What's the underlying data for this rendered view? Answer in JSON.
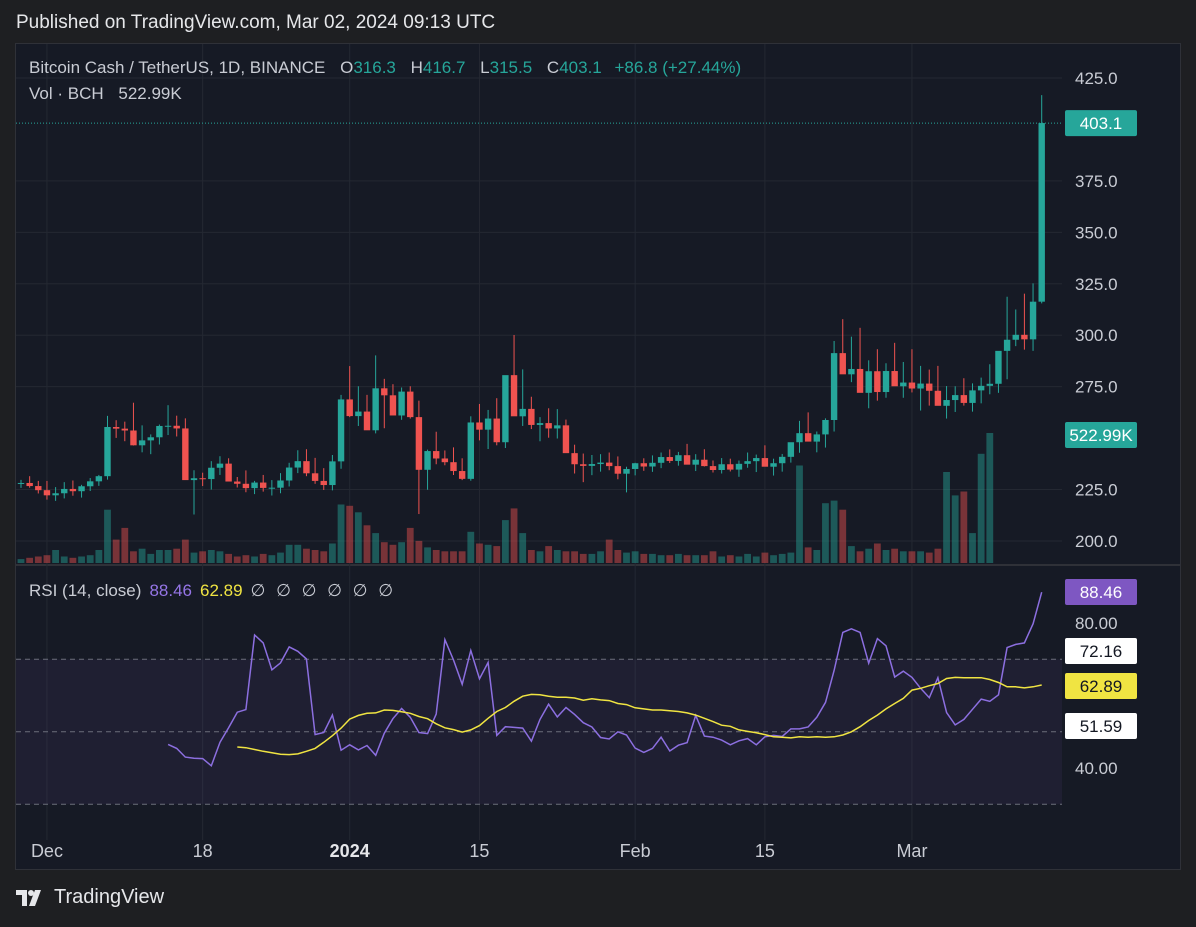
{
  "published": "Published on TradingView.com, Mar 02, 2024 09:13 UTC",
  "legend": {
    "symbol": "Bitcoin Cash / TetherUS, 1D, BINANCE",
    "o_label": "O",
    "o": "316.3",
    "h_label": "H",
    "h": "416.7",
    "l_label": "L",
    "l": "315.5",
    "c_label": "C",
    "c": "403.1",
    "change": "+86.8 (+27.44%)",
    "vol_label": "Vol · BCH",
    "vol_value": "522.99K"
  },
  "rsi_legend": {
    "label": "RSI (14, close)",
    "rsi": "88.46",
    "ma": "62.89",
    "na": "∅ ∅ ∅ ∅ ∅ ∅"
  },
  "brand": "TradingView",
  "colors": {
    "up": "#26a69a",
    "down": "#ef5350",
    "rsi": "#8c6fe0",
    "rsi_ma": "#f0e442",
    "bg": "#161a25",
    "grid": "#242832"
  },
  "chart_data": [
    {
      "type": "candlestick",
      "title": "Bitcoin Cash / TetherUS, 1D, BINANCE",
      "y_ticks": [
        "425.0",
        "375.0",
        "350.0",
        "325.0",
        "300.0",
        "275.0",
        "225.0",
        "200.0"
      ],
      "x_ticks": [
        "Dec",
        "18",
        "2024",
        "15",
        "Feb",
        "15",
        "Mar"
      ],
      "x_tick_index": [
        3,
        21,
        38,
        53,
        71,
        86,
        103
      ],
      "last_price_label": "403.1",
      "volume_label": "522.99K",
      "ylim": [
        195,
        428
      ],
      "candles_ohlc": [
        [
          227.8,
          229.7,
          225.8,
          228.2
        ],
        [
          228.2,
          231.5,
          225.9,
          226.7
        ],
        [
          226.7,
          229.2,
          223.1,
          224.7
        ],
        [
          224.7,
          229.2,
          220.1,
          222.2
        ],
        [
          222.2,
          226.2,
          219.5,
          223.2
        ],
        [
          223.2,
          228.6,
          220.7,
          225.3
        ],
        [
          225.3,
          229.4,
          222.0,
          224.2
        ],
        [
          224.2,
          227.3,
          221.1,
          226.6
        ],
        [
          226.6,
          230.6,
          224.3,
          229.0
        ],
        [
          229.0,
          232.1,
          226.8,
          231.5
        ],
        [
          231.5,
          260.8,
          229.8,
          255.4
        ],
        [
          255.4,
          258.7,
          250.1,
          254.6
        ],
        [
          254.6,
          258.0,
          248.5,
          253.7
        ],
        [
          253.7,
          267.2,
          246.4,
          246.5
        ],
        [
          246.5,
          256.2,
          243.1,
          248.9
        ],
        [
          248.9,
          251.8,
          242.2,
          250.4
        ],
        [
          250.4,
          256.6,
          246.9,
          255.9
        ],
        [
          255.9,
          266.0,
          251.5,
          256.0
        ],
        [
          256.0,
          260.9,
          250.8,
          254.7
        ],
        [
          254.7,
          259.6,
          229.9,
          229.6
        ],
        [
          229.6,
          234.4,
          212.9,
          230.5
        ],
        [
          230.5,
          233.2,
          226.7,
          230.1
        ],
        [
          230.1,
          238.8,
          225.0,
          235.6
        ],
        [
          235.6,
          241.2,
          232.1,
          237.6
        ],
        [
          237.6,
          240.2,
          230.3,
          228.9
        ],
        [
          228.9,
          231.1,
          226.0,
          227.8
        ],
        [
          227.8,
          234.3,
          223.7,
          225.7
        ],
        [
          225.7,
          229.2,
          222.8,
          228.4
        ],
        [
          228.4,
          232.1,
          224.0,
          225.8
        ],
        [
          225.8,
          229.6,
          222.1,
          225.9
        ],
        [
          225.9,
          233.0,
          223.2,
          229.4
        ],
        [
          229.4,
          238.0,
          226.5,
          235.7
        ],
        [
          235.7,
          244.1,
          233.0,
          238.8
        ],
        [
          238.8,
          244.6,
          231.5,
          232.9
        ],
        [
          232.9,
          240.4,
          227.8,
          229.2
        ],
        [
          229.2,
          235.4,
          224.8,
          227.2
        ],
        [
          227.2,
          241.8,
          224.6,
          238.7
        ],
        [
          238.7,
          271.0,
          235.1,
          268.8
        ],
        [
          268.8,
          285.0,
          260.2,
          260.7
        ],
        [
          260.7,
          275.2,
          255.9,
          262.9
        ],
        [
          262.9,
          271.0,
          256.5,
          253.8
        ],
        [
          253.8,
          290.2,
          252.3,
          274.2
        ],
        [
          274.2,
          278.8,
          254.8,
          270.8
        ],
        [
          270.8,
          276.2,
          262.8,
          261.0
        ],
        [
          261.0,
          274.6,
          258.9,
          272.6
        ],
        [
          272.6,
          275.2,
          259.5,
          260.2
        ],
        [
          260.2,
          268.2,
          213.1,
          234.6
        ],
        [
          234.6,
          244.4,
          224.9,
          243.7
        ],
        [
          243.7,
          253.1,
          237.3,
          240.1
        ],
        [
          240.1,
          244.0,
          236.8,
          238.3
        ],
        [
          238.3,
          245.5,
          232.1,
          234.0
        ],
        [
          234.0,
          240.2,
          229.6,
          230.2
        ],
        [
          230.2,
          260.6,
          229.3,
          257.6
        ],
        [
          257.6,
          266.6,
          248.9,
          254.1
        ],
        [
          254.1,
          263.7,
          244.7,
          259.5
        ],
        [
          259.5,
          269.4,
          246.5,
          248.0
        ],
        [
          248.0,
          274.8,
          245.2,
          280.6
        ],
        [
          280.6,
          300.1,
          271.8,
          260.6
        ],
        [
          260.6,
          283.4,
          255.9,
          264.2
        ],
        [
          264.2,
          270.1,
          254.4,
          256.4
        ],
        [
          256.4,
          260.2,
          248.5,
          257.3
        ],
        [
          257.3,
          264.5,
          250.2,
          254.7
        ],
        [
          254.7,
          264.1,
          249.8,
          256.2
        ],
        [
          256.2,
          259.0,
          246.8,
          242.7
        ],
        [
          242.7,
          246.8,
          232.8,
          237.3
        ],
        [
          237.3,
          242.5,
          228.6,
          236.5
        ],
        [
          236.5,
          241.8,
          232.0,
          237.4
        ],
        [
          237.4,
          242.2,
          233.7,
          238.1
        ],
        [
          238.1,
          243.0,
          234.4,
          236.4
        ],
        [
          236.4,
          241.1,
          230.0,
          232.7
        ],
        [
          232.7,
          236.1,
          223.6,
          235.0
        ],
        [
          235.0,
          238.0,
          231.9,
          237.8
        ],
        [
          237.8,
          240.2,
          234.1,
          236.2
        ],
        [
          236.2,
          241.6,
          233.6,
          238.0
        ],
        [
          238.0,
          243.0,
          235.4,
          240.8
        ],
        [
          240.8,
          244.5,
          237.9,
          238.9
        ],
        [
          238.9,
          243.3,
          236.6,
          241.7
        ],
        [
          241.7,
          247.2,
          239.2,
          237.1
        ],
        [
          237.1,
          242.2,
          234.0,
          239.5
        ],
        [
          239.5,
          244.6,
          236.2,
          236.4
        ],
        [
          236.4,
          239.1,
          233.3,
          234.5
        ],
        [
          234.5,
          240.3,
          232.8,
          237.3
        ],
        [
          237.3,
          240.0,
          233.8,
          234.7
        ],
        [
          234.7,
          239.1,
          231.2,
          237.5
        ],
        [
          237.5,
          243.0,
          235.6,
          238.8
        ],
        [
          238.8,
          242.0,
          233.5,
          240.3
        ],
        [
          240.3,
          246.5,
          237.1,
          236.1
        ],
        [
          236.1,
          240.0,
          231.8,
          237.8
        ],
        [
          237.8,
          242.3,
          233.7,
          240.9
        ],
        [
          240.9,
          247.1,
          238.1,
          248.0
        ],
        [
          248.0,
          258.4,
          242.9,
          252.4
        ],
        [
          252.4,
          262.5,
          249.9,
          248.3
        ],
        [
          248.3,
          253.2,
          243.1,
          251.8
        ],
        [
          251.8,
          259.6,
          245.4,
          258.8
        ],
        [
          258.8,
          297.2,
          253.2,
          291.3
        ],
        [
          291.3,
          307.8,
          285.5,
          281.0
        ],
        [
          281.0,
          299.3,
          277.2,
          283.6
        ],
        [
          283.6,
          303.6,
          278.6,
          272.0
        ],
        [
          272.0,
          287.8,
          264.5,
          282.5
        ],
        [
          282.5,
          293.2,
          268.2,
          272.4
        ],
        [
          272.4,
          286.4,
          269.6,
          282.6
        ],
        [
          282.6,
          296.3,
          276.2,
          275.2
        ],
        [
          275.2,
          287.0,
          269.6,
          277.0
        ],
        [
          277.0,
          293.2,
          272.2,
          274.1
        ],
        [
          274.1,
          285.1,
          263.4,
          276.5
        ],
        [
          276.5,
          283.3,
          265.8,
          273.0
        ],
        [
          273.0,
          285.1,
          267.1,
          265.7
        ],
        [
          265.7,
          275.3,
          259.5,
          268.5
        ],
        [
          268.5,
          275.2,
          262.7,
          270.9
        ],
        [
          270.9,
          279.1,
          265.8,
          267.1
        ],
        [
          267.1,
          276.6,
          262.9,
          273.2
        ],
        [
          273.2,
          279.4,
          266.9,
          275.4
        ],
        [
          275.4,
          285.9,
          271.3,
          276.4
        ],
        [
          276.4,
          290.7,
          272.0,
          292.4
        ],
        [
          292.4,
          318.7,
          278.6,
          297.8
        ],
        [
          297.8,
          312.5,
          294.7,
          300.2
        ],
        [
          300.2,
          320.2,
          293.0,
          298.0
        ],
        [
          298.0,
          325.2,
          292.4,
          316.3
        ],
        [
          316.3,
          416.7,
          315.5,
          403.1
        ]
      ],
      "volume_relative": [
        0.03,
        0.04,
        0.05,
        0.06,
        0.1,
        0.05,
        0.04,
        0.05,
        0.06,
        0.1,
        0.41,
        0.18,
        0.27,
        0.09,
        0.11,
        0.07,
        0.1,
        0.1,
        0.11,
        0.18,
        0.08,
        0.09,
        0.1,
        0.09,
        0.07,
        0.05,
        0.06,
        0.05,
        0.07,
        0.06,
        0.08,
        0.14,
        0.14,
        0.11,
        0.1,
        0.09,
        0.15,
        0.45,
        0.44,
        0.39,
        0.29,
        0.23,
        0.16,
        0.14,
        0.16,
        0.27,
        0.17,
        0.12,
        0.1,
        0.09,
        0.09,
        0.09,
        0.24,
        0.15,
        0.14,
        0.13,
        0.33,
        0.42,
        0.23,
        0.1,
        0.09,
        0.13,
        0.1,
        0.09,
        0.09,
        0.07,
        0.07,
        0.09,
        0.18,
        0.1,
        0.08,
        0.09,
        0.07,
        0.07,
        0.06,
        0.06,
        0.07,
        0.06,
        0.06,
        0.06,
        0.09,
        0.05,
        0.06,
        0.05,
        0.07,
        0.05,
        0.08,
        0.06,
        0.07,
        0.08,
        0.75,
        0.12,
        0.1,
        0.46,
        0.48,
        0.41,
        0.13,
        0.09,
        0.11,
        0.15,
        0.1,
        0.11,
        0.09,
        0.09,
        0.09,
        0.08,
        0.11,
        0.7,
        0.52,
        0.55,
        0.23,
        0.84,
        1.0
      ]
    },
    {
      "type": "line",
      "title": "RSI (14, close)",
      "ylim": [
        30,
        92
      ],
      "y_ticks": [
        "80.00",
        "40.00"
      ],
      "bands": [
        30,
        50,
        70
      ],
      "labels": {
        "rsi_last": "88.46",
        "upper": "72.16",
        "ma_last": "62.89",
        "mid": "51.59"
      },
      "series": [
        {
          "name": "RSI",
          "values": [
            46.5,
            45.4,
            43.0,
            42.7,
            42.6,
            40.6,
            47.1,
            51.1,
            55.4,
            56.1,
            76.7,
            74.5,
            67.1,
            69.0,
            73.4,
            72.2,
            70.1,
            49.2,
            49.8,
            54.6,
            44.9,
            46.4,
            45.0,
            46.2,
            43.5,
            49.6,
            53.6,
            56.4,
            54.0,
            49.8,
            49.5,
            54.9,
            75.4,
            69.8,
            63.1,
            72.4,
            64.6,
            69.1,
            49.0,
            51.4,
            51.2,
            51.0,
            47.4,
            53.4,
            57.6,
            54.1,
            56.7,
            54.8,
            52.5,
            51.3,
            48.4,
            48.0,
            50.0,
            49.1,
            45.5,
            44.3,
            45.4,
            48.5,
            44.7,
            46.3,
            47.0,
            54.5,
            48.8,
            48.5,
            47.7,
            46.4,
            47.5,
            48.1,
            46.4,
            48.6,
            49.0,
            48.7,
            50.8,
            50.8,
            51.3,
            54.0,
            58.1,
            66.9,
            77.4,
            78.4,
            77.4,
            68.9,
            75.7,
            73.7,
            65.1,
            66.7,
            65.0,
            62.0,
            59.4,
            64.9,
            55.3,
            51.9,
            53.4,
            56.2,
            59.0,
            58.4,
            60.2,
            73.2,
            74.1,
            74.5,
            79.8,
            88.5
          ]
        },
        {
          "name": "RSI-based MA",
          "values": [
            45.8,
            45.6,
            45.1,
            44.6,
            44.2,
            43.8,
            43.7,
            43.9,
            44.6,
            45.4,
            47.1,
            48.9,
            51.0,
            53.5,
            54.5,
            55.1,
            55.2,
            56.0,
            55.9,
            55.5,
            55.1,
            54.2,
            53.6,
            52.2,
            51.1,
            50.6,
            49.9,
            50.5,
            51.7,
            53.7,
            55.6,
            56.7,
            58.4,
            59.8,
            60.3,
            60.2,
            59.8,
            59.5,
            59.5,
            59.3,
            58.7,
            59.1,
            58.8,
            58.6,
            57.8,
            57.5,
            56.6,
            56.3,
            56.0,
            56.0,
            55.8,
            55.6,
            55.2,
            54.6,
            53.7,
            52.8,
            51.8,
            51.5,
            50.5,
            50.1,
            49.7,
            49.2,
            48.6,
            48.5,
            48.3,
            48.6,
            48.5,
            48.6,
            48.5,
            48.6,
            49.1,
            50.0,
            51.4,
            53.1,
            54.6,
            56.3,
            57.8,
            59.2,
            61.5,
            62.0,
            62.7,
            63.3,
            64.7,
            65.0,
            64.9,
            64.9,
            64.9,
            64.4,
            63.6,
            62.4,
            62.4,
            62.1,
            62.4,
            62.9
          ]
        }
      ]
    }
  ]
}
